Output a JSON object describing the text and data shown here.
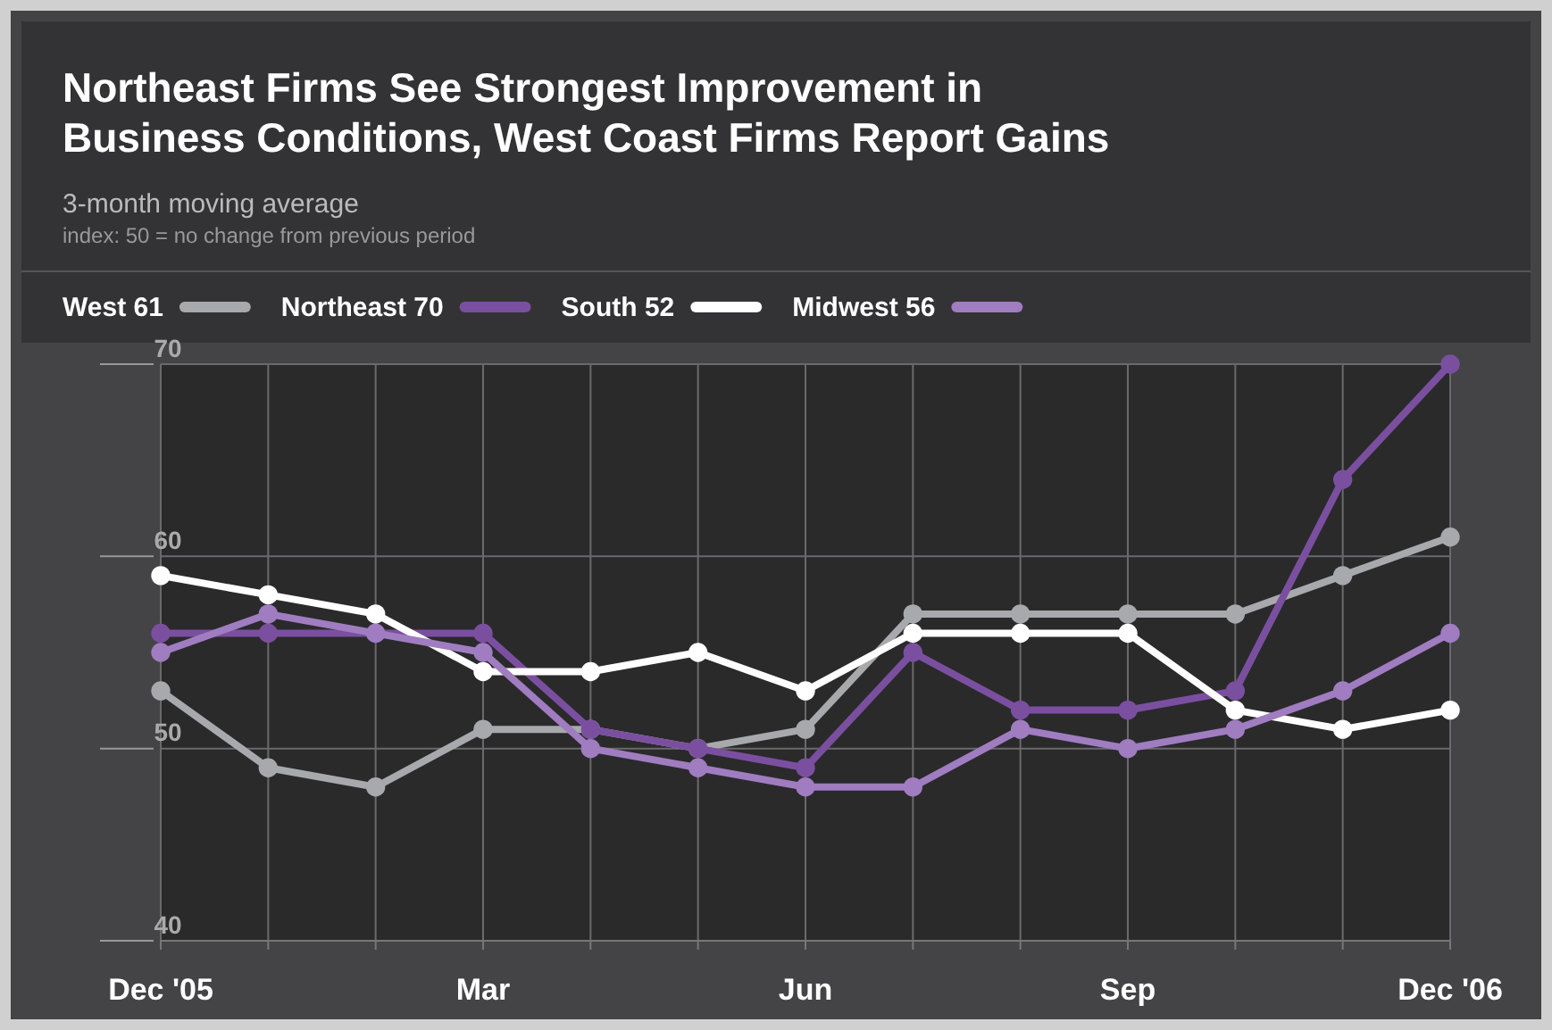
{
  "chart_data": {
    "type": "line",
    "title": "Northeast Firms See Strongest Improvement in Business Conditions, West Coast Firms Report Gains",
    "subtitle": "3-month moving average",
    "annotations": [
      "index: 50 = no change from previous period"
    ],
    "categories": [
      "Dec '05",
      null,
      null,
      "Mar",
      null,
      null,
      "Jun",
      null,
      null,
      "Sep",
      null,
      null,
      "Dec '06"
    ],
    "series": [
      {
        "name": "West 61",
        "color": "#a7a9ac",
        "values": [
          53,
          49,
          48,
          51,
          51,
          50,
          51,
          57,
          57,
          57,
          57,
          59,
          61
        ]
      },
      {
        "name": "Northeast 70",
        "color": "#7b4fa0",
        "values": [
          56,
          56,
          56,
          56,
          51,
          50,
          49,
          55,
          52,
          52,
          53,
          64,
          70
        ]
      },
      {
        "name": "South 52",
        "color": "#ffffff",
        "values": [
          59,
          58,
          57,
          54,
          54,
          55,
          53,
          56,
          56,
          56,
          52,
          51,
          52
        ]
      },
      {
        "name": "Midwest 56",
        "color": "#a07cc0",
        "values": [
          55,
          57,
          56,
          55,
          50,
          49,
          48,
          48,
          51,
          50,
          51,
          53,
          56
        ]
      }
    ],
    "ylim": [
      40,
      70
    ],
    "yticks": [
      40,
      50,
      60,
      70
    ],
    "grid": true,
    "legend": "top left",
    "marker": "circle",
    "line_style": "solid"
  }
}
